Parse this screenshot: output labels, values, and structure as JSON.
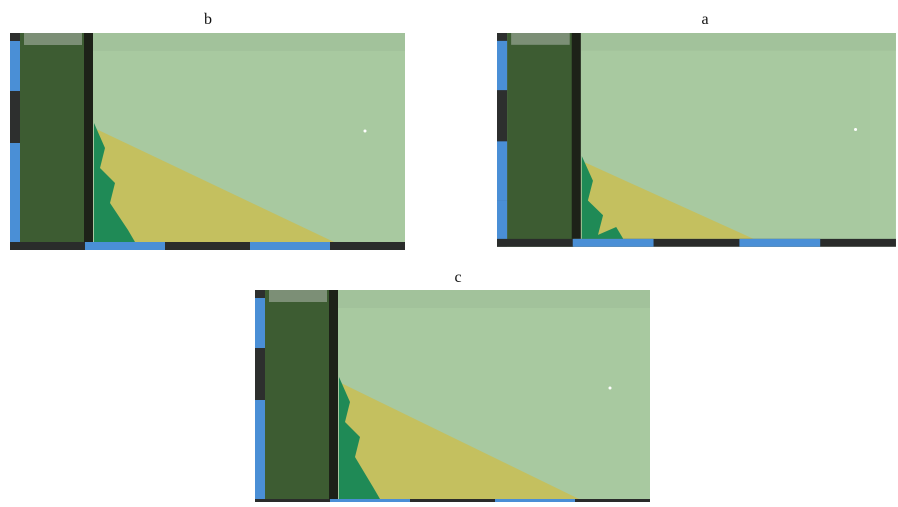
{
  "panels": [
    {
      "label": "b"
    },
    {
      "label": "a"
    },
    {
      "label": "c"
    }
  ]
}
